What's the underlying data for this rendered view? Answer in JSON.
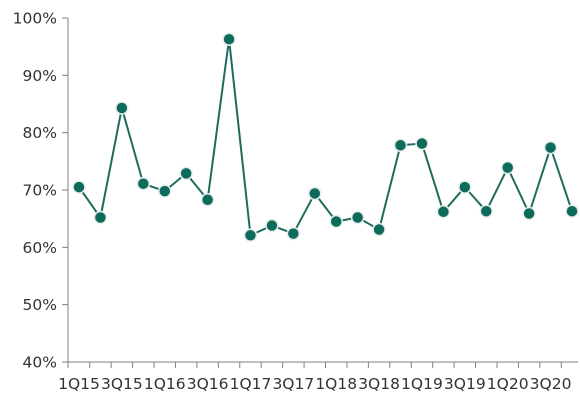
{
  "chart_data": {
    "type": "line",
    "title": "",
    "xlabel": "",
    "ylabel": "",
    "ylim": [
      40,
      100
    ],
    "y_ticks": [
      40,
      50,
      60,
      70,
      80,
      90,
      100
    ],
    "y_tick_suffix": "%",
    "grid": false,
    "legend": "none",
    "colors": {
      "line": "#1f6b5f",
      "marker": "#0e6b5c",
      "marker_edge": "#e6eeec",
      "axis": "#808080"
    },
    "x_tick_labels": [
      "1Q15",
      "3Q15",
      "1Q16",
      "3Q16",
      "1Q17",
      "3Q17",
      "1Q18",
      "3Q18",
      "1Q19",
      "3Q19",
      "1Q20",
      "3Q20"
    ],
    "x_tick_labels_at": [
      0,
      2,
      4,
      6,
      8,
      10,
      12,
      14,
      16,
      18,
      20,
      22
    ],
    "series": [
      {
        "values": [
          70.5,
          65.2,
          84.3,
          71.1,
          69.8,
          72.9,
          68.3,
          96.3,
          62.1,
          63.8,
          62.4,
          69.4,
          64.5,
          65.2,
          63.1,
          77.8,
          78.1,
          66.2,
          70.5,
          66.3,
          73.9,
          65.9,
          77.4,
          66.3
        ]
      }
    ]
  }
}
